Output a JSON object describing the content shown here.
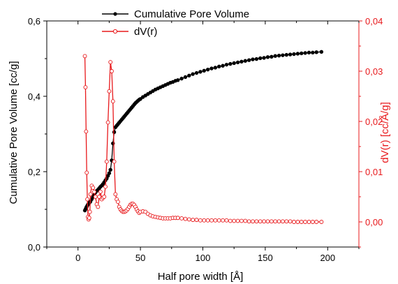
{
  "chart_data": {
    "type": "line",
    "title": "",
    "xlabel": "Half pore width [Å]",
    "ylabel": "Cumulative Pore Volume [cc/g]",
    "y2label": "dV(r) [cc/Å/g]",
    "xlim": [
      -25,
      225
    ],
    "ylim": [
      0.0,
      0.6
    ],
    "y2lim": [
      -0.005,
      0.04
    ],
    "xticks": [
      "0",
      "50",
      "100",
      "150",
      "200"
    ],
    "yticks": [
      "0,0",
      "0,2",
      "0,4",
      "0,6"
    ],
    "y2ticks": [
      "0,00",
      "0,01",
      "0,02",
      "0,03",
      "0,04"
    ],
    "grid": false,
    "legend_position": "top-center",
    "series": [
      {
        "name": "Cumulative Pore Volume",
        "axis": "left",
        "color": "#000000",
        "marker": "filled-circle",
        "x": [
          5.5,
          6.0,
          6.5,
          7.0,
          7.5,
          8.0,
          8.5,
          9.0,
          9.5,
          10,
          11,
          12,
          13,
          14,
          15,
          16,
          17,
          18,
          19,
          20,
          21,
          22,
          23,
          24,
          25,
          26,
          27,
          28,
          29,
          30,
          31,
          32,
          33,
          34,
          35,
          36,
          37,
          38,
          39,
          40,
          41,
          42,
          43,
          44,
          45,
          46,
          47,
          48,
          49,
          50,
          52,
          54,
          56,
          58,
          60,
          62,
          64,
          66,
          68,
          70,
          72,
          74,
          76,
          78,
          80,
          83,
          86,
          89,
          92,
          95,
          98,
          101,
          104,
          107,
          110,
          113,
          116,
          119,
          122,
          125,
          128,
          131,
          134,
          137,
          140,
          143,
          146,
          149,
          152,
          155,
          158,
          161,
          164,
          167,
          170,
          173,
          176,
          179,
          182,
          185,
          188,
          191,
          195
        ],
        "values": [
          0.097,
          0.1,
          0.104,
          0.107,
          0.11,
          0.113,
          0.115,
          0.117,
          0.119,
          0.121,
          0.127,
          0.133,
          0.139,
          0.145,
          0.149,
          0.152,
          0.156,
          0.16,
          0.163,
          0.167,
          0.172,
          0.177,
          0.182,
          0.189,
          0.196,
          0.205,
          0.23,
          0.275,
          0.305,
          0.318,
          0.322,
          0.326,
          0.33,
          0.334,
          0.338,
          0.342,
          0.346,
          0.35,
          0.354,
          0.358,
          0.362,
          0.366,
          0.37,
          0.374,
          0.378,
          0.382,
          0.385,
          0.388,
          0.391,
          0.393,
          0.398,
          0.402,
          0.406,
          0.41,
          0.414,
          0.418,
          0.421,
          0.424,
          0.427,
          0.43,
          0.433,
          0.436,
          0.438,
          0.441,
          0.443,
          0.447,
          0.451,
          0.455,
          0.459,
          0.462,
          0.465,
          0.468,
          0.471,
          0.474,
          0.476,
          0.479,
          0.481,
          0.484,
          0.486,
          0.488,
          0.49,
          0.492,
          0.494,
          0.496,
          0.498,
          0.499,
          0.501,
          0.502,
          0.504,
          0.505,
          0.507,
          0.508,
          0.509,
          0.51,
          0.511,
          0.512,
          0.513,
          0.514,
          0.515,
          0.516,
          0.516,
          0.517,
          0.518
        ]
      },
      {
        "name": "dV(r)",
        "axis": "right",
        "color": "#e8191c",
        "marker": "open-circle",
        "x": [
          5.5,
          6.0,
          6.5,
          7.0,
          7.5,
          8.0,
          8.5,
          9.0,
          9.5,
          10,
          11,
          12,
          13,
          14,
          15,
          16,
          17,
          18,
          19,
          20,
          21,
          22,
          23,
          24,
          25,
          26,
          27,
          28,
          29,
          30,
          31,
          32,
          33,
          34,
          35,
          36,
          37,
          38,
          39,
          40,
          41,
          42,
          43,
          44,
          45,
          46,
          47,
          48,
          49,
          50,
          52,
          54,
          56,
          58,
          60,
          62,
          64,
          66,
          68,
          70,
          72,
          74,
          76,
          78,
          80,
          83,
          86,
          89,
          92,
          95,
          98,
          101,
          104,
          107,
          110,
          113,
          116,
          119,
          122,
          125,
          128,
          131,
          134,
          137,
          140,
          143,
          146,
          149,
          152,
          155,
          158,
          161,
          164,
          167,
          170,
          173,
          176,
          179,
          182,
          185,
          188,
          191,
          195
        ],
        "values": [
          0.033,
          0.0268,
          0.018,
          0.0098,
          0.0045,
          0.001,
          0.0005,
          0.0008,
          0.002,
          0.0055,
          0.0072,
          0.0068,
          0.006,
          0.005,
          0.0035,
          0.003,
          0.005,
          0.006,
          0.0045,
          0.0048,
          0.005,
          0.007,
          0.012,
          0.0198,
          0.026,
          0.0318,
          0.03,
          0.024,
          0.012,
          0.0055,
          0.0045,
          0.004,
          0.003,
          0.0025,
          0.0022,
          0.002,
          0.002,
          0.0021,
          0.0023,
          0.0026,
          0.003,
          0.0034,
          0.0036,
          0.0036,
          0.0034,
          0.003,
          0.0025,
          0.0021,
          0.0018,
          0.002,
          0.0021,
          0.002,
          0.0016,
          0.0013,
          0.0011,
          0.001,
          0.0009,
          0.0008,
          0.0007,
          0.0007,
          0.0007,
          0.0007,
          0.0008,
          0.0008,
          0.0008,
          0.0007,
          0.0006,
          0.0005,
          0.0004,
          0.0004,
          0.0003,
          0.0003,
          0.0003,
          0.0003,
          0.0003,
          0.0003,
          0.0003,
          0.0003,
          0.0002,
          0.0002,
          0.0002,
          0.0002,
          0.0002,
          0.0001,
          0.0001,
          0.0001,
          0.0001,
          0.0001,
          0.0001,
          0.0001,
          0.0001,
          0.0001,
          0.0001,
          0.0001,
          0.0001,
          0.0,
          0.0,
          0.0,
          0.0,
          0.0,
          0.0,
          0.0,
          0.0
        ]
      }
    ]
  }
}
